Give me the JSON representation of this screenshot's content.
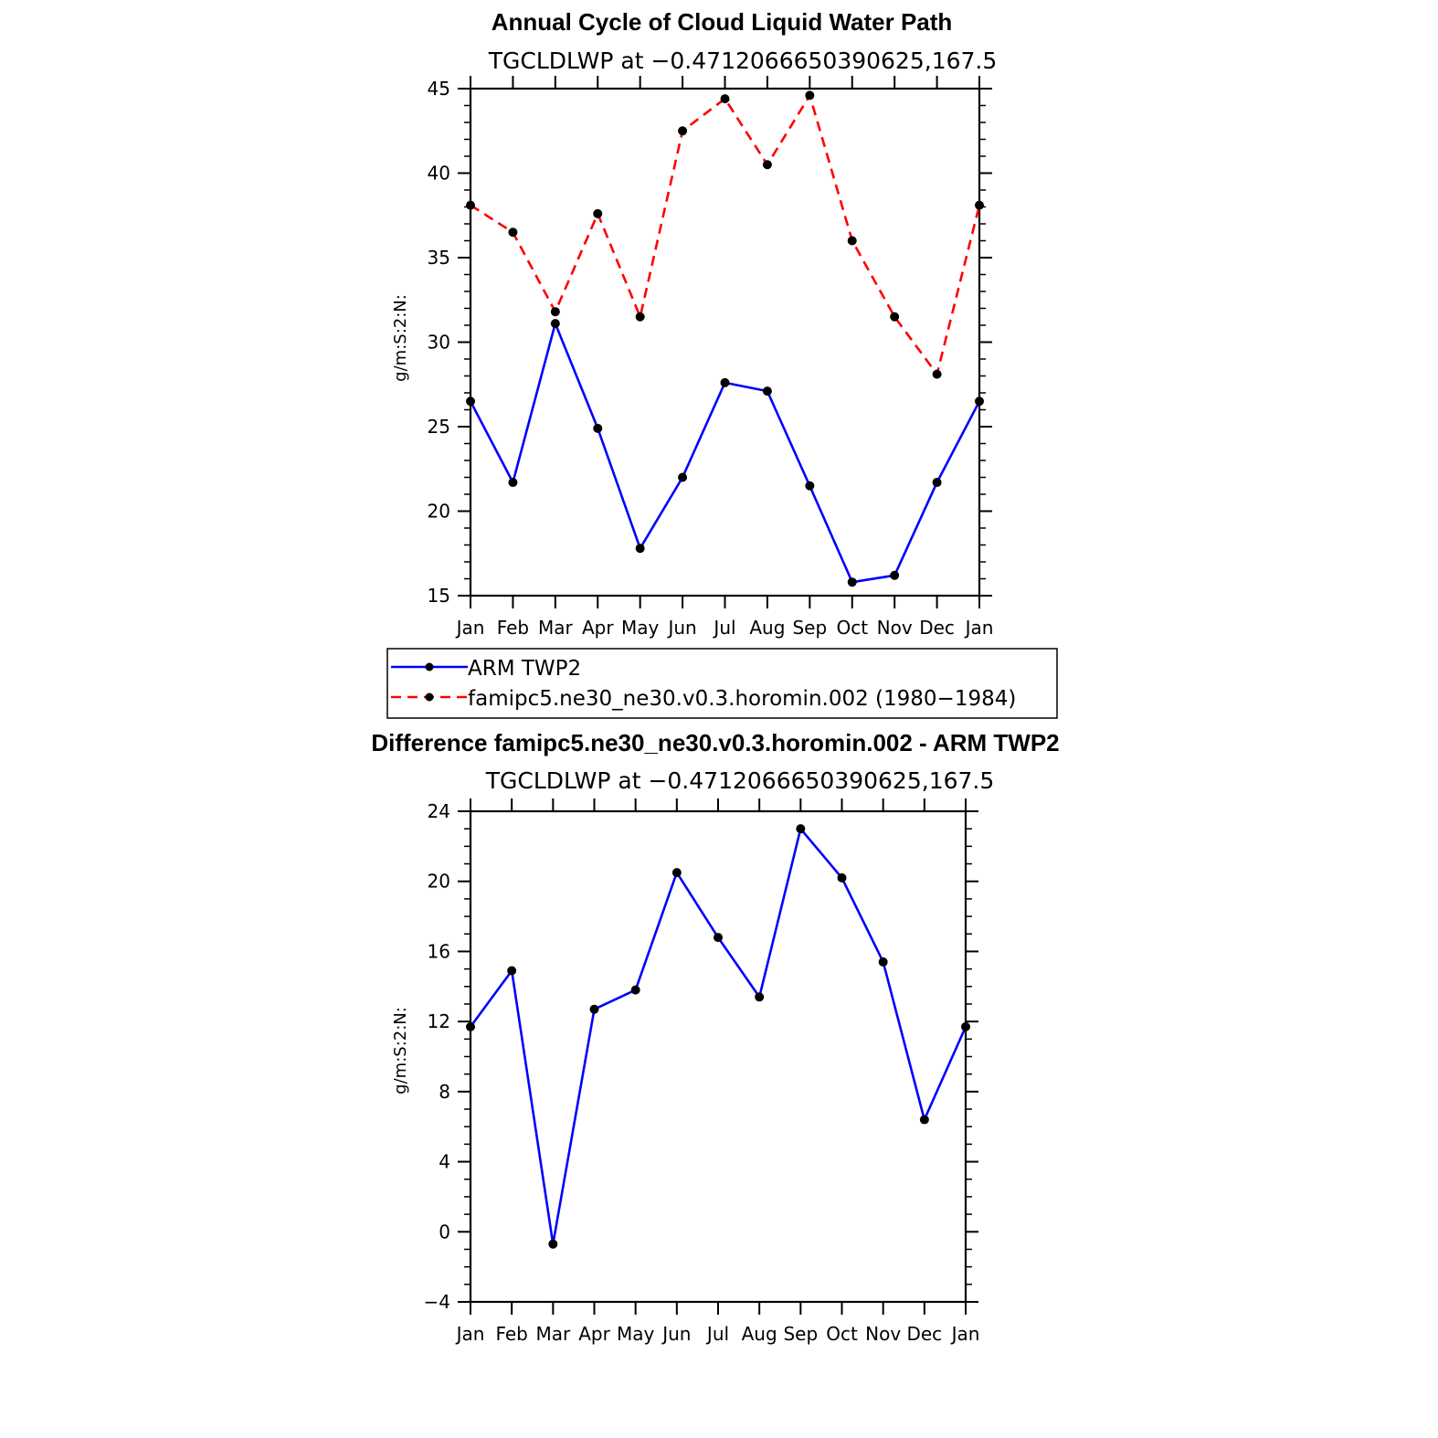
{
  "colors": {
    "series1": "#0000ff",
    "series2": "#ff0000",
    "marker": "#000000",
    "axis": "#000000"
  },
  "chart_data": [
    {
      "type": "line",
      "title": "Annual Cycle of Cloud Liquid Water Path",
      "subtitle": "TGCLDLWP at −0.4712066650390625,167.5",
      "xlabel": "",
      "ylabel": "g/m:S:2:N:",
      "categories": [
        "Jan",
        "Feb",
        "Mar",
        "Apr",
        "May",
        "Jun",
        "Jul",
        "Aug",
        "Sep",
        "Oct",
        "Nov",
        "Dec",
        "Jan"
      ],
      "ylim": [
        15,
        45
      ],
      "yticks": [
        "15",
        "20",
        "25",
        "30",
        "35",
        "40",
        "45"
      ],
      "series": [
        {
          "name": "ARM TWP2",
          "style": "solid",
          "color": "#0000ff",
          "values": [
            26.5,
            21.7,
            31.1,
            24.9,
            17.8,
            22.0,
            27.6,
            27.1,
            21.5,
            15.8,
            16.2,
            21.7,
            26.5
          ]
        },
        {
          "name": "famipc5.ne30_ne30.v0.3.horomin.002 (1980−1984)",
          "style": "dashed",
          "color": "#ff0000",
          "values": [
            38.1,
            36.5,
            31.8,
            37.6,
            31.5,
            42.5,
            44.4,
            40.5,
            44.6,
            36.0,
            31.5,
            28.1,
            38.1
          ]
        }
      ],
      "legend_position": "below"
    },
    {
      "type": "line",
      "title": "Difference famipc5.ne30_ne30.v0.3.horomin.002 - ARM TWP2",
      "subtitle": "TGCLDLWP at −0.4712066650390625,167.5",
      "xlabel": "",
      "ylabel": "g/m:S:2:N:",
      "categories": [
        "Jan",
        "Feb",
        "Mar",
        "Apr",
        "May",
        "Jun",
        "Jul",
        "Aug",
        "Sep",
        "Oct",
        "Nov",
        "Dec",
        "Jan"
      ],
      "ylim": [
        -4,
        24
      ],
      "yticks": [
        "−4",
        "0",
        "4",
        "8",
        "12",
        "16",
        "20",
        "24"
      ],
      "series": [
        {
          "style": "solid",
          "color": "#0000ff",
          "values": [
            11.7,
            14.9,
            -0.7,
            12.7,
            13.8,
            20.5,
            16.8,
            13.4,
            23.0,
            20.2,
            15.4,
            6.4,
            11.7
          ]
        }
      ]
    }
  ]
}
